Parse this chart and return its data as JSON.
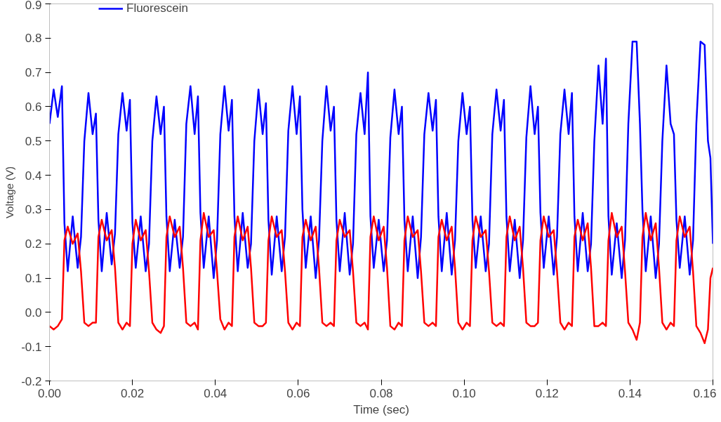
{
  "chart_data": {
    "type": "line",
    "xlabel": "Time (sec)",
    "ylabel": "Voltage (V)",
    "legend": "top",
    "grid": false,
    "marker": "none",
    "line_style": "solid",
    "xlim": [
      0,
      0.16
    ],
    "ylim": [
      -0.2,
      0.9
    ],
    "xticks": [
      {
        "value": 0,
        "label": "0.00"
      },
      {
        "value": 0.02,
        "label": "0.02"
      },
      {
        "value": 0.04,
        "label": "0.04"
      },
      {
        "value": 0.06,
        "label": "0.06"
      },
      {
        "value": 0.08,
        "label": "0.08"
      },
      {
        "value": 0.1,
        "label": "0.10"
      },
      {
        "value": 0.12,
        "label": "0.12"
      },
      {
        "value": 0.14,
        "label": "0.14"
      },
      {
        "value": 0.16,
        "label": "0.16"
      }
    ],
    "yticks": [
      {
        "value": -0.2,
        "label": "-0.2"
      },
      {
        "value": -0.1,
        "label": "-0.1"
      },
      {
        "value": 0,
        "label": "0.0"
      },
      {
        "value": 0.1,
        "label": "0.1"
      },
      {
        "value": 0.2,
        "label": "0.2"
      },
      {
        "value": 0.3,
        "label": "0.3"
      },
      {
        "value": 0.4,
        "label": "0.4"
      },
      {
        "value": 0.5,
        "label": "0.5"
      },
      {
        "value": 0.6,
        "label": "0.6"
      },
      {
        "value": 0.7,
        "label": "0.7"
      },
      {
        "value": 0.8,
        "label": "0.8"
      },
      {
        "value": 0.9,
        "label": "0.9"
      }
    ],
    "x": [
      0,
      0.001,
      0.002,
      0.003,
      0.0036,
      0.0044,
      0.0056,
      0.0068,
      0.0076,
      0.0084,
      0.0094,
      0.0104,
      0.0112,
      0.0118,
      0.0126,
      0.0138,
      0.015,
      0.0158,
      0.0166,
      0.0176,
      0.0186,
      0.0194,
      0.02,
      0.0208,
      0.022,
      0.0232,
      0.024,
      0.0248,
      0.0258,
      0.0268,
      0.0276,
      0.0282,
      0.029,
      0.0302,
      0.0314,
      0.0322,
      0.033,
      0.034,
      0.035,
      0.0358,
      0.0364,
      0.0372,
      0.0384,
      0.0396,
      0.0404,
      0.0412,
      0.0422,
      0.0432,
      0.044,
      0.0446,
      0.0454,
      0.0466,
      0.0478,
      0.0486,
      0.0494,
      0.0504,
      0.0514,
      0.0522,
      0.0528,
      0.0536,
      0.0548,
      0.056,
      0.0568,
      0.0576,
      0.0586,
      0.0596,
      0.0604,
      0.061,
      0.0618,
      0.063,
      0.0642,
      0.065,
      0.0658,
      0.0668,
      0.0678,
      0.0686,
      0.0692,
      0.07,
      0.0712,
      0.0724,
      0.0732,
      0.074,
      0.075,
      0.076,
      0.0768,
      0.0774,
      0.0782,
      0.0794,
      0.0806,
      0.0814,
      0.0822,
      0.0832,
      0.0842,
      0.085,
      0.0856,
      0.0864,
      0.0876,
      0.0888,
      0.0896,
      0.0904,
      0.0914,
      0.0924,
      0.0932,
      0.0938,
      0.0946,
      0.0958,
      0.097,
      0.0978,
      0.0986,
      0.0996,
      0.1006,
      0.1014,
      0.102,
      0.1028,
      0.104,
      0.1052,
      0.106,
      0.1068,
      0.1078,
      0.1088,
      0.1096,
      0.1102,
      0.111,
      0.1122,
      0.1134,
      0.1142,
      0.115,
      0.116,
      0.117,
      0.1178,
      0.1184,
      0.1192,
      0.1204,
      0.1216,
      0.1224,
      0.1232,
      0.1242,
      0.1252,
      0.126,
      0.1266,
      0.1274,
      0.1286,
      0.1298,
      0.1306,
      0.1314,
      0.1324,
      0.1334,
      0.1342,
      0.1348,
      0.1356,
      0.1368,
      0.138,
      0.1388,
      0.1396,
      0.1406,
      0.1416,
      0.1424,
      0.143,
      0.1438,
      0.145,
      0.1462,
      0.147,
      0.1478,
      0.1488,
      0.1498,
      0.1506,
      0.1512,
      0.152,
      0.1532,
      0.1544,
      0.1552,
      0.156,
      0.157,
      0.158,
      0.1588,
      0.1594,
      0.16
    ],
    "series": [
      {
        "name": "Fluorescein",
        "color": "#0000ff",
        "values": [
          0.55,
          0.65,
          0.57,
          0.66,
          0.26,
          0.12,
          0.28,
          0.13,
          0.22,
          0.5,
          0.64,
          0.52,
          0.58,
          0.27,
          0.12,
          0.29,
          0.14,
          0.23,
          0.52,
          0.64,
          0.53,
          0.62,
          0.26,
          0.13,
          0.28,
          0.12,
          0.2,
          0.5,
          0.63,
          0.52,
          0.6,
          0.28,
          0.12,
          0.27,
          0.13,
          0.22,
          0.55,
          0.66,
          0.52,
          0.63,
          0.29,
          0.13,
          0.28,
          0.1,
          0.21,
          0.52,
          0.66,
          0.53,
          0.62,
          0.28,
          0.12,
          0.29,
          0.13,
          0.2,
          0.5,
          0.65,
          0.52,
          0.61,
          0.27,
          0.11,
          0.28,
          0.12,
          0.22,
          0.53,
          0.66,
          0.52,
          0.63,
          0.3,
          0.13,
          0.28,
          0.1,
          0.21,
          0.5,
          0.66,
          0.53,
          0.6,
          0.27,
          0.12,
          0.29,
          0.11,
          0.2,
          0.52,
          0.64,
          0.52,
          0.7,
          0.28,
          0.13,
          0.27,
          0.12,
          0.21,
          0.51,
          0.65,
          0.52,
          0.6,
          0.27,
          0.12,
          0.28,
          0.1,
          0.22,
          0.52,
          0.64,
          0.53,
          0.62,
          0.28,
          0.12,
          0.29,
          0.11,
          0.21,
          0.5,
          0.64,
          0.52,
          0.6,
          0.27,
          0.13,
          0.28,
          0.12,
          0.2,
          0.52,
          0.65,
          0.53,
          0.62,
          0.28,
          0.12,
          0.27,
          0.1,
          0.21,
          0.51,
          0.66,
          0.52,
          0.6,
          0.29,
          0.13,
          0.28,
          0.11,
          0.22,
          0.52,
          0.65,
          0.52,
          0.64,
          0.28,
          0.12,
          0.29,
          0.12,
          0.2,
          0.5,
          0.72,
          0.55,
          0.74,
          0.28,
          0.11,
          0.26,
          0.1,
          0.21,
          0.55,
          0.79,
          0.79,
          0.55,
          0.3,
          0.12,
          0.28,
          0.1,
          0.2,
          0.5,
          0.72,
          0.55,
          0.52,
          0.27,
          0.13,
          0.28,
          0.11,
          0.21,
          0.55,
          0.79,
          0.78,
          0.5,
          0.45,
          0.2
        ]
      },
      {
        "color": "#ff0000",
        "values": [
          -0.04,
          -0.05,
          -0.04,
          -0.02,
          0.21,
          0.25,
          0.2,
          0.23,
          0.12,
          -0.03,
          -0.04,
          -0.03,
          -0.03,
          0.22,
          0.27,
          0.21,
          0.24,
          0.13,
          -0.03,
          -0.05,
          -0.03,
          -0.04,
          0.2,
          0.27,
          0.21,
          0.24,
          0.12,
          -0.03,
          -0.05,
          -0.06,
          -0.04,
          0.22,
          0.28,
          0.22,
          0.25,
          0.13,
          -0.03,
          -0.04,
          -0.03,
          -0.05,
          0.21,
          0.29,
          0.22,
          0.24,
          0.12,
          -0.02,
          -0.05,
          -0.03,
          -0.04,
          0.22,
          0.28,
          0.21,
          0.25,
          0.13,
          -0.03,
          -0.04,
          -0.04,
          -0.03,
          0.21,
          0.28,
          0.22,
          0.24,
          0.12,
          -0.03,
          -0.05,
          -0.03,
          -0.04,
          0.22,
          0.27,
          0.21,
          0.25,
          0.13,
          -0.03,
          -0.04,
          -0.03,
          -0.04,
          0.21,
          0.27,
          0.22,
          0.24,
          0.12,
          -0.03,
          -0.04,
          -0.03,
          -0.05,
          0.22,
          0.28,
          0.21,
          0.25,
          0.13,
          -0.04,
          -0.05,
          -0.03,
          -0.04,
          0.21,
          0.28,
          0.22,
          0.24,
          0.12,
          -0.03,
          -0.04,
          -0.03,
          -0.04,
          0.22,
          0.27,
          0.21,
          0.25,
          0.13,
          -0.03,
          -0.05,
          -0.03,
          -0.04,
          0.21,
          0.28,
          0.22,
          0.24,
          0.12,
          -0.03,
          -0.04,
          -0.03,
          -0.04,
          0.22,
          0.28,
          0.21,
          0.25,
          0.13,
          -0.03,
          -0.04,
          -0.04,
          -0.03,
          0.21,
          0.28,
          0.22,
          0.24,
          0.12,
          -0.03,
          -0.05,
          -0.03,
          -0.04,
          0.22,
          0.27,
          0.21,
          0.26,
          0.13,
          -0.04,
          -0.04,
          -0.03,
          -0.04,
          0.21,
          0.29,
          0.22,
          0.25,
          0.12,
          -0.03,
          -0.05,
          -0.08,
          -0.03,
          0.22,
          0.29,
          0.21,
          0.26,
          0.13,
          -0.03,
          -0.05,
          -0.03,
          -0.04,
          0.21,
          0.28,
          0.22,
          0.25,
          0.12,
          -0.04,
          -0.06,
          -0.09,
          -0.05,
          0.1,
          0.13
        ]
      }
    ]
  }
}
